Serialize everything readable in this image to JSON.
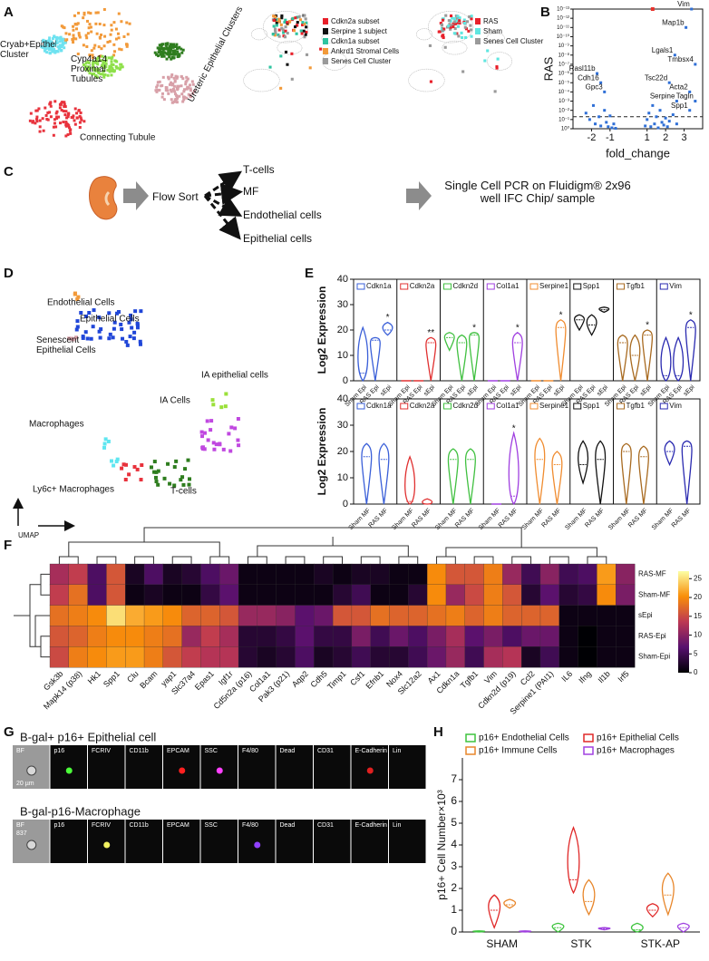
{
  "panels": {
    "labels": [
      "A",
      "B",
      "C",
      "D",
      "E",
      "F",
      "G",
      "H"
    ],
    "a": {
      "cluster_labels": [
        "Cryab+Epithelial Cluster",
        "Cyp4a14 Proximal Tubules",
        "Ureteric Epithelial Clusters",
        "Connecting Tubule"
      ],
      "legend_1": [
        {
          "name": "Cdkn2a subset",
          "color": "#e8202a"
        },
        {
          "name": "Serpine 1 subject",
          "color": "#111111"
        },
        {
          "name": "Cdkn1a subset",
          "color": "#2ec4a0"
        },
        {
          "name": "Ankrd1 Stromal Cells",
          "color": "#f29a3a"
        },
        {
          "name": "Senes Cell Cluster",
          "color": "#9a9a9a"
        }
      ],
      "legend_2": [
        {
          "name": "RAS",
          "color": "#e8202a"
        },
        {
          "name": "Sham",
          "color": "#5fe6e0"
        },
        {
          "name": "Senes Cell Cluster",
          "color": "#9a9a9a"
        }
      ]
    },
    "c": {
      "source": "Flow Sort",
      "targets": [
        "T-cells",
        "MF",
        "Endothelial cells",
        "Epithelial cells"
      ],
      "assay": "Single Cell PCR on Fluidigm® 2x96 well IFC Chip/ sample"
    },
    "d": {
      "cluster_labels": [
        "Endothelial Cells",
        "Epithelial Cells",
        "Senescent Epithelial Cells",
        "IA epithelial cells",
        "IA Cells",
        "Macrophages",
        "Ly6c+ Macrophages",
        "T-cells"
      ],
      "axis": "UMAP"
    },
    "g": {
      "titles": [
        "B-gal+ p16+ Epithelial cell",
        "B-gal-p16-Macrophage"
      ],
      "channels": [
        "BF",
        "p16",
        "FCRIV",
        "CD11b",
        "EPCAM",
        "SSC",
        "F4/80",
        "Dead",
        "CD31",
        "E-Cadherin",
        "Lin"
      ],
      "scale_bar": "20 µm",
      "image_ids": [
        "837"
      ]
    }
  },
  "chart_data": [
    {
      "type": "scatter",
      "y_label": "RAS",
      "x_label": "fold_change",
      "log_y": true,
      "color": "#2f6fd6",
      "x": [
        -2.3,
        -2.1,
        -1.9,
        -1.8,
        -1.6,
        -1.5,
        -1.3,
        -1.2,
        -1.1,
        -1.0,
        -0.9,
        -0.8,
        -0.7,
        0.9,
        1.0,
        1.1,
        1.2,
        1.3,
        1.4,
        1.5,
        1.6,
        1.7,
        1.8,
        1.9,
        2.0,
        2.1,
        2.2,
        2.4,
        2.6,
        3.4,
        3.1,
        2.5,
        3.6,
        -1.7,
        -1.5,
        -1.3,
        2.2,
        2.6,
        3.3,
        3.6,
        3.3
      ],
      "y": [
        0.02,
        0.1,
        0.003,
        0.3,
        0.05,
        0.5,
        0.01,
        0.2,
        0.6,
        0.04,
        0.8,
        0.3,
        0.9,
        0.5,
        0.1,
        0.02,
        0.6,
        0.003,
        0.3,
        0.05,
        0.8,
        0.01,
        0.2,
        0.4,
        0.07,
        0.6,
        0.15,
        0.03,
        0.3,
        1e-13,
        1e-11,
        1e-08,
        1e-07,
        1e-06,
        1e-05,
        0.0001,
        1e-05,
        0.001,
        0.0001,
        0.001,
        0.01
      ],
      "point_labels": [
        null,
        null,
        null,
        null,
        null,
        null,
        null,
        null,
        null,
        null,
        null,
        null,
        null,
        null,
        null,
        null,
        null,
        null,
        null,
        null,
        null,
        null,
        null,
        null,
        null,
        null,
        null,
        null,
        null,
        "Vim",
        "Map1b",
        "Lgals1",
        "Tmbsx4",
        "Rasl11b",
        "Cdh16",
        "Gpc3",
        "Tsc22d",
        "Serpine",
        "Acta2",
        "Tagln",
        "Spp1"
      ],
      "highlight": {
        "x": [
          1.3
        ],
        "y": [
          1e-13
        ],
        "color": "#e8322b"
      },
      "cutoff": 0.05,
      "xlim": [
        -3,
        4
      ],
      "ylim": [
        1,
        1e-13
      ],
      "xticks": [
        -2,
        -1,
        1,
        2,
        3
      ],
      "yticks": [
        {
          "value": 1,
          "label": "10⁰"
        },
        {
          "value": 0.1,
          "label": "10⁻¹"
        },
        {
          "value": 0.01,
          "label": "10⁻²"
        },
        {
          "value": 0.001,
          "label": "10⁻³"
        },
        {
          "value": 0.0001,
          "label": "10⁻⁴"
        },
        {
          "value": 1e-05,
          "label": "10⁻⁵"
        },
        {
          "value": 1e-06,
          "label": "10⁻⁶"
        },
        {
          "value": 1e-07,
          "label": "10⁻⁷"
        },
        {
          "value": 1e-08,
          "label": "10⁻⁸"
        },
        {
          "value": 1e-09,
          "label": "10⁻⁹"
        },
        {
          "value": 1e-10,
          "label": "10⁻¹⁰"
        },
        {
          "value": 1e-11,
          "label": "10⁻¹¹"
        },
        {
          "value": 1e-12,
          "label": "10⁻¹²"
        },
        {
          "value": 1e-13,
          "label": "10⁻¹³"
        }
      ]
    },
    {
      "type": "violin",
      "y_label": "Log2 Expression",
      "categories": [
        "Sham Epi",
        "RAS Epi",
        "sEpi"
      ],
      "ylim": [
        0,
        40
      ],
      "yticks": [
        0,
        10,
        20,
        30,
        40
      ],
      "series": [
        {
          "name": "Cdkn1a",
          "color": "#3a5fd8",
          "min": [
            0,
            0,
            18
          ],
          "median": [
            3,
            16,
            20
          ],
          "max": [
            21,
            17,
            23
          ],
          "annotation": "*"
        },
        {
          "name": "Cdkn2a",
          "color": "#e03030",
          "min": [
            0,
            0,
            0
          ],
          "median": [
            0,
            0,
            15
          ],
          "max": [
            0,
            0,
            17
          ],
          "annotation": "**"
        },
        {
          "name": "Cdkn2d",
          "color": "#40c040",
          "min": [
            12,
            0,
            0
          ],
          "median": [
            17,
            15,
            18
          ],
          "max": [
            19,
            18,
            19
          ],
          "annotation": "*"
        },
        {
          "name": "Col1a1",
          "color": "#a040e0",
          "min": [
            0,
            0,
            0
          ],
          "median": [
            0,
            0,
            15
          ],
          "max": [
            0,
            0,
            19
          ],
          "annotation": "*"
        },
        {
          "name": "Serpine1",
          "color": "#f08c30",
          "min": [
            0,
            0,
            0
          ],
          "median": [
            0,
            0,
            21
          ],
          "max": [
            0,
            0,
            24
          ],
          "annotation": "*"
        },
        {
          "name": "Spp1",
          "color": "#111111",
          "min": [
            20,
            18,
            27
          ],
          "median": [
            24,
            22,
            28
          ],
          "max": [
            26,
            26,
            29
          ]
        },
        {
          "name": "Tgfb1",
          "color": "#a86a20",
          "min": [
            0,
            0,
            0
          ],
          "median": [
            15,
            10,
            18
          ],
          "max": [
            18,
            18,
            20
          ],
          "annotation": "*"
        },
        {
          "name": "Vim",
          "color": "#2a2ab0",
          "min": [
            0,
            0,
            0
          ],
          "median": [
            2,
            2,
            21
          ],
          "max": [
            17,
            17,
            24
          ],
          "annotation": "*"
        }
      ]
    },
    {
      "type": "violin",
      "y_label": "Log2 Expression",
      "categories": [
        "Sham MF",
        "RAS MF"
      ],
      "ylim": [
        0,
        40
      ],
      "yticks": [
        0,
        10,
        20,
        30,
        40
      ],
      "series": [
        {
          "name": "Cdkn1a",
          "color": "#3a5fd8",
          "min": [
            0,
            0
          ],
          "median": [
            18,
            17
          ],
          "max": [
            23,
            23
          ]
        },
        {
          "name": "Cdkn2a",
          "color": "#e03030",
          "min": [
            0,
            0
          ],
          "median": [
            1,
            0
          ],
          "max": [
            18,
            2
          ]
        },
        {
          "name": "Cdkn2d",
          "color": "#40c040",
          "min": [
            0,
            0
          ],
          "median": [
            17,
            17
          ],
          "max": [
            21,
            21
          ]
        },
        {
          "name": "Col1a1",
          "color": "#a040e0",
          "min": [
            0,
            0
          ],
          "median": [
            0,
            3
          ],
          "max": [
            0,
            27
          ],
          "annotation": "*"
        },
        {
          "name": "Serpine1",
          "color": "#f08c30",
          "min": [
            0,
            0
          ],
          "median": [
            17,
            15
          ],
          "max": [
            25,
            20
          ]
        },
        {
          "name": "Spp1",
          "color": "#111111",
          "min": [
            8,
            0
          ],
          "median": [
            15,
            17
          ],
          "max": [
            24,
            24
          ]
        },
        {
          "name": "Tgfb1",
          "color": "#a86a20",
          "min": [
            0,
            0
          ],
          "median": [
            20,
            18
          ],
          "max": [
            23,
            22
          ]
        },
        {
          "name": "Vim",
          "color": "#2a2ab0",
          "min": [
            15,
            0
          ],
          "median": [
            20,
            22
          ],
          "max": [
            24,
            24
          ]
        }
      ]
    },
    {
      "type": "heatmap",
      "columns": [
        "Gsk3b",
        "Mapk14 (p38)",
        "Hk1",
        "Spp1",
        "Clu",
        "Bcam",
        "yap1",
        "Slc37a4",
        "Epas1",
        "Igf1r",
        "Cd5n2a (p16)",
        "Col1a1",
        "Pak3 (p21)",
        "Aqp2",
        "Cdh5",
        "Timp1",
        "Csf1",
        "Efnb1",
        "Nox4",
        "Slc12a2",
        "Ax1",
        "Cdkn1a",
        "Tgfb1",
        "Vim",
        "Cdkn2d (p19)",
        "Ccl2",
        "Serpine1 (PAI1)",
        "IL6",
        "Ifng",
        "Il1b",
        "Irf5"
      ],
      "rows": [
        "RAS-MF",
        "Sham-MF",
        "sEpi",
        "RAS-Epi",
        "Sham-Epi"
      ],
      "values": [
        [
          12,
          14,
          6,
          16,
          2,
          6,
          2,
          3,
          6,
          8,
          1,
          1,
          1,
          1,
          2,
          1,
          2,
          2,
          1,
          1,
          20,
          16,
          16,
          19,
          11,
          5,
          10,
          5,
          6,
          21,
          10
        ],
        [
          14,
          18,
          6,
          16,
          1,
          2,
          1,
          1,
          4,
          7,
          1,
          1,
          1,
          1,
          1,
          3,
          5,
          1,
          1,
          3,
          20,
          11,
          15,
          19,
          16,
          3,
          7,
          3,
          4,
          20,
          9
        ],
        [
          18,
          19,
          20,
          25,
          22,
          21,
          20,
          17,
          17,
          16,
          11,
          11,
          10,
          7,
          8,
          16,
          16,
          18,
          17,
          17,
          18,
          19,
          17,
          19,
          17,
          17,
          17,
          1,
          1,
          1,
          1
        ],
        [
          16,
          17,
          19,
          20,
          20,
          19,
          18,
          11,
          14,
          12,
          3,
          3,
          4,
          7,
          4,
          4,
          9,
          5,
          8,
          6,
          9,
          12,
          7,
          9,
          6,
          8,
          8,
          1,
          0,
          1,
          1
        ],
        [
          15,
          19,
          20,
          21,
          21,
          19,
          16,
          14,
          13,
          13,
          3,
          2,
          3,
          6,
          2,
          3,
          5,
          3,
          3,
          5,
          8,
          11,
          5,
          12,
          13,
          2,
          5,
          1,
          0,
          1,
          1
        ]
      ],
      "zlim": [
        0,
        27
      ],
      "zticks": [
        0,
        5,
        10,
        15,
        20,
        25
      ]
    },
    {
      "type": "violin",
      "y_label": "p16+ Cell Number×10³",
      "categories": [
        "SHAM",
        "STK",
        "STK-AP"
      ],
      "ylim": [
        0,
        8
      ],
      "yticks": [
        0,
        1,
        2,
        3,
        4,
        5,
        6,
        7
      ],
      "series": [
        {
          "name": "p16+ Endothelial Cells",
          "color": "#3ec43e",
          "min": [
            0,
            0,
            0
          ],
          "median": [
            0.02,
            0.2,
            0.1
          ],
          "max": [
            0.05,
            0.4,
            0.4
          ]
        },
        {
          "name": "p16+ Epithelial Cells",
          "color": "#e02828",
          "min": [
            0.2,
            1.8,
            0.7
          ],
          "median": [
            1.0,
            2.4,
            1.0
          ],
          "max": [
            1.7,
            4.8,
            1.3
          ]
        },
        {
          "name": "p16+ Immune Cells",
          "color": "#e8862a",
          "min": [
            1.1,
            0.8,
            0.8
          ],
          "median": [
            1.25,
            1.4,
            1.7
          ],
          "max": [
            1.5,
            2.4,
            2.7
          ]
        },
        {
          "name": "p16+ Macrophages",
          "color": "#a040e0",
          "min": [
            0,
            0.1,
            0
          ],
          "median": [
            0.02,
            0.15,
            0.2
          ],
          "max": [
            0.05,
            0.2,
            0.4
          ]
        }
      ]
    }
  ]
}
